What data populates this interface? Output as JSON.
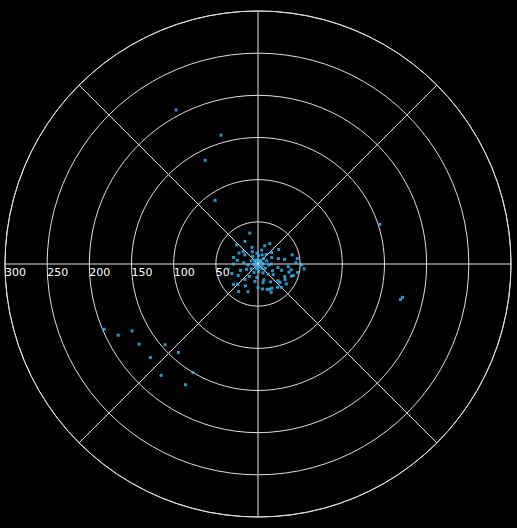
{
  "chart_data": {
    "type": "scatter",
    "x": [
      10,
      35,
      60,
      85,
      110,
      140,
      170,
      200,
      230,
      260,
      290,
      320,
      350,
      5,
      25,
      45,
      70,
      95,
      120,
      150,
      175,
      205,
      235,
      265,
      295,
      325,
      355,
      15,
      40,
      65,
      90,
      115,
      135,
      160,
      185,
      215,
      245,
      275,
      305,
      335,
      20,
      50,
      75,
      100,
      125,
      145,
      165,
      190,
      220,
      250,
      280,
      310,
      340,
      30,
      55,
      80,
      105,
      130,
      155,
      180,
      210,
      240,
      270,
      300,
      330,
      95,
      100,
      105,
      110,
      115,
      120,
      125,
      130,
      140,
      150,
      160,
      170,
      200,
      225,
      250,
      88,
      91,
      96,
      102,
      108,
      230,
      215,
      260,
      285,
      312,
      345,
      75,
      82,
      135,
      155,
      222,
      211,
      242,
      247,
      229,
      229,
      236,
      221,
      211,
      243,
      104,
      103,
      72,
      332,
      344,
      333,
      326
    ],
    "values": [
      3,
      5,
      4,
      6,
      5,
      7,
      4,
      6,
      3,
      5,
      4,
      6,
      5,
      10,
      12,
      9,
      11,
      13,
      10,
      12,
      9,
      11,
      10,
      12,
      9,
      11,
      13,
      17,
      15,
      18,
      16,
      19,
      17,
      20,
      16,
      18,
      15,
      17,
      19,
      16,
      23,
      21,
      25,
      24,
      22,
      26,
      23,
      21,
      24,
      22,
      25,
      23,
      21,
      28,
      30,
      32,
      29,
      31,
      33,
      28,
      30,
      27,
      29,
      26,
      31,
      36,
      40,
      38,
      42,
      35,
      37,
      41,
      34,
      36,
      33,
      32,
      30,
      35,
      34,
      33,
      45,
      52,
      55,
      48,
      44,
      38,
      40,
      36,
      30,
      34,
      38,
      42,
      47,
      39,
      37,
      141,
      150,
      169,
      198,
      169,
      146,
      170,
      175,
      167,
      186,
      174,
      176,
      152,
      207,
      159,
      138,
      91
    ],
    "color": "#33bbff",
    "xlim": [
      0,
      360
    ],
    "xticks": [
      0,
      45,
      90,
      135,
      180,
      225,
      270,
      315
    ],
    "ylim": [
      0,
      300
    ],
    "yticks": [
      50,
      100,
      150,
      200,
      250,
      300
    ],
    "grid": true,
    "tick_labels": "y"
  }
}
